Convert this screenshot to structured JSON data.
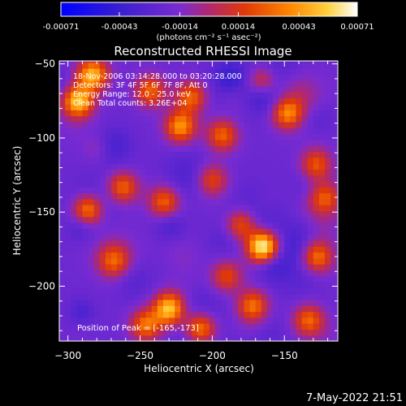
{
  "chart_data": {
    "type": "heatmap",
    "title": "Reconstructed RHESSI Image",
    "xlabel": "Heliocentric X (arcsec)",
    "ylabel": "Heliocentric Y (arcsec)",
    "xlim": [
      -306,
      -113
    ],
    "ylim": [
      -237,
      -48
    ],
    "x_ticks": [
      -300,
      -250,
      -200,
      -150
    ],
    "x_tick_labels": [
      "−300",
      "−250",
      "−200",
      "−150"
    ],
    "y_ticks": [
      -50,
      -100,
      -150,
      -200
    ],
    "y_tick_labels": [
      "−50",
      "−100",
      "−150",
      "−200"
    ],
    "colorbar": {
      "range": [
        -0.00071,
        0.00071
      ],
      "ticks": [
        -0.00071,
        -0.00043,
        -0.00014,
        0.00014,
        0.00043,
        0.00071
      ],
      "tick_labels": [
        "-0.00071",
        "-0.00043",
        "-0.00014",
        "0.00014",
        "0.00043",
        "0.00071"
      ],
      "unit_label": "(photons cm⁻² s⁻¹ asec⁻²)"
    },
    "annotations": [
      "18-Nov-2006 03:14:28.000 to 03:20:28.000",
      "Detectors: 3F 4F 5F 6F 7F 8F, Att 0",
      "Energy Range: 12.0 - 25.0 keV",
      "Clean     Total counts: 3.26E+04"
    ],
    "peak_label": "Position of Peak = [-165,-173]",
    "peak_position": [
      -165,
      -173
    ],
    "bright_sources": [
      {
        "x": -293,
        "y": -75,
        "level": 0.85
      },
      {
        "x": -283,
        "y": -57,
        "level": 0.8
      },
      {
        "x": -243,
        "y": -68,
        "level": 0.55
      },
      {
        "x": -222,
        "y": -92,
        "level": 0.7
      },
      {
        "x": -215,
        "y": -72,
        "level": 0.55
      },
      {
        "x": -193,
        "y": -98,
        "level": 0.55
      },
      {
        "x": -166,
        "y": -63,
        "level": 0.6
      },
      {
        "x": -148,
        "y": -83,
        "level": 0.65
      },
      {
        "x": -128,
        "y": -118,
        "level": 0.5
      },
      {
        "x": -286,
        "y": -148,
        "level": 0.75
      },
      {
        "x": -262,
        "y": -133,
        "level": 0.55
      },
      {
        "x": -233,
        "y": -143,
        "level": 0.55
      },
      {
        "x": -200,
        "y": -128,
        "level": 0.45
      },
      {
        "x": -165,
        "y": -173,
        "level": 1.0
      },
      {
        "x": -180,
        "y": -158,
        "level": 0.6
      },
      {
        "x": -127,
        "y": -180,
        "level": 0.6
      },
      {
        "x": -122,
        "y": -140,
        "level": 0.5
      },
      {
        "x": -268,
        "y": -183,
        "level": 0.45
      },
      {
        "x": -230,
        "y": -215,
        "level": 0.85
      },
      {
        "x": -208,
        "y": -228,
        "level": 0.75
      },
      {
        "x": -246,
        "y": -226,
        "level": 0.6
      },
      {
        "x": -172,
        "y": -213,
        "level": 0.6
      },
      {
        "x": -133,
        "y": -223,
        "level": 0.6
      },
      {
        "x": -190,
        "y": -193,
        "level": 0.45
      }
    ]
  },
  "timestamp": "7-May-2022 21:51"
}
